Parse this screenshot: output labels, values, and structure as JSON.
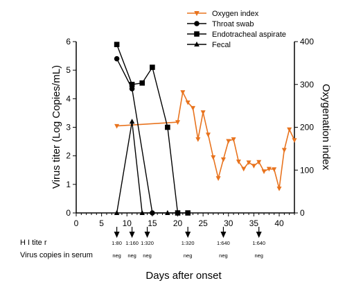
{
  "chart_data": {
    "type": "line",
    "x_label": "Days after onset",
    "x_range": [
      0,
      43
    ],
    "x_ticks": [
      0,
      5,
      10,
      15,
      20,
      25,
      30,
      35,
      40
    ],
    "y_left": {
      "label": "Virus titer (Log Copies/mL)",
      "range": [
        0,
        6
      ],
      "ticks": [
        0,
        1,
        2,
        3,
        4,
        5,
        6
      ]
    },
    "y_right": {
      "label": "Oxygenation index",
      "range": [
        0,
        400
      ],
      "ticks": [
        0,
        100,
        200,
        300,
        400
      ]
    },
    "legend_position": "top-right",
    "series": [
      {
        "name": "Oxygen index",
        "axis": "right",
        "marker": "triangle-down",
        "color": "#E8731E",
        "points": [
          [
            8,
            203
          ],
          [
            20,
            212
          ],
          [
            21,
            282
          ],
          [
            22,
            258
          ],
          [
            23,
            245
          ],
          [
            24,
            172
          ],
          [
            25,
            235
          ],
          [
            26,
            183
          ],
          [
            27,
            130
          ],
          [
            28,
            81
          ],
          [
            29,
            125
          ],
          [
            30,
            168
          ],
          [
            31,
            172
          ],
          [
            32,
            120
          ],
          [
            33,
            103
          ],
          [
            34,
            118
          ],
          [
            35,
            110
          ],
          [
            36,
            119
          ],
          [
            37,
            97
          ],
          [
            38,
            103
          ],
          [
            39,
            102
          ],
          [
            40,
            57
          ],
          [
            41,
            147
          ],
          [
            42,
            195
          ],
          [
            43,
            170
          ]
        ]
      },
      {
        "name": "Throat swab",
        "axis": "left",
        "marker": "circle",
        "color": "#000000",
        "points": [
          [
            8,
            5.4
          ],
          [
            11,
            4.35
          ],
          [
            15,
            0
          ]
        ]
      },
      {
        "name": "Endotracheal aspirate",
        "axis": "left",
        "marker": "square",
        "color": "#000000",
        "points": [
          [
            8,
            5.9
          ],
          [
            11,
            4.5
          ],
          [
            13,
            4.55
          ],
          [
            15,
            5.1
          ],
          [
            18,
            3.0
          ],
          [
            20,
            0
          ],
          [
            22,
            0
          ]
        ]
      },
      {
        "name": "Fecal",
        "axis": "left",
        "marker": "triangle-up",
        "color": "#000000",
        "points": [
          [
            8,
            0
          ],
          [
            11,
            3.2
          ],
          [
            13,
            0
          ],
          [
            18,
            0
          ],
          [
            20,
            0
          ]
        ]
      }
    ],
    "annotations": {
      "hi_label": "H I  tite r",
      "serum_label": "Virus copies in serum",
      "events": [
        {
          "day": 8,
          "hi": "1:80",
          "serum": "neg"
        },
        {
          "day": 11,
          "hi": "1:160",
          "serum": "neg"
        },
        {
          "day": 14,
          "hi": "1:320",
          "serum": "neg"
        },
        {
          "day": 22,
          "hi": "1:320",
          "serum": "neg"
        },
        {
          "day": 29,
          "hi": "1:640",
          "serum": "neg"
        },
        {
          "day": 36,
          "hi": "1:640",
          "serum": "neg"
        }
      ]
    }
  }
}
